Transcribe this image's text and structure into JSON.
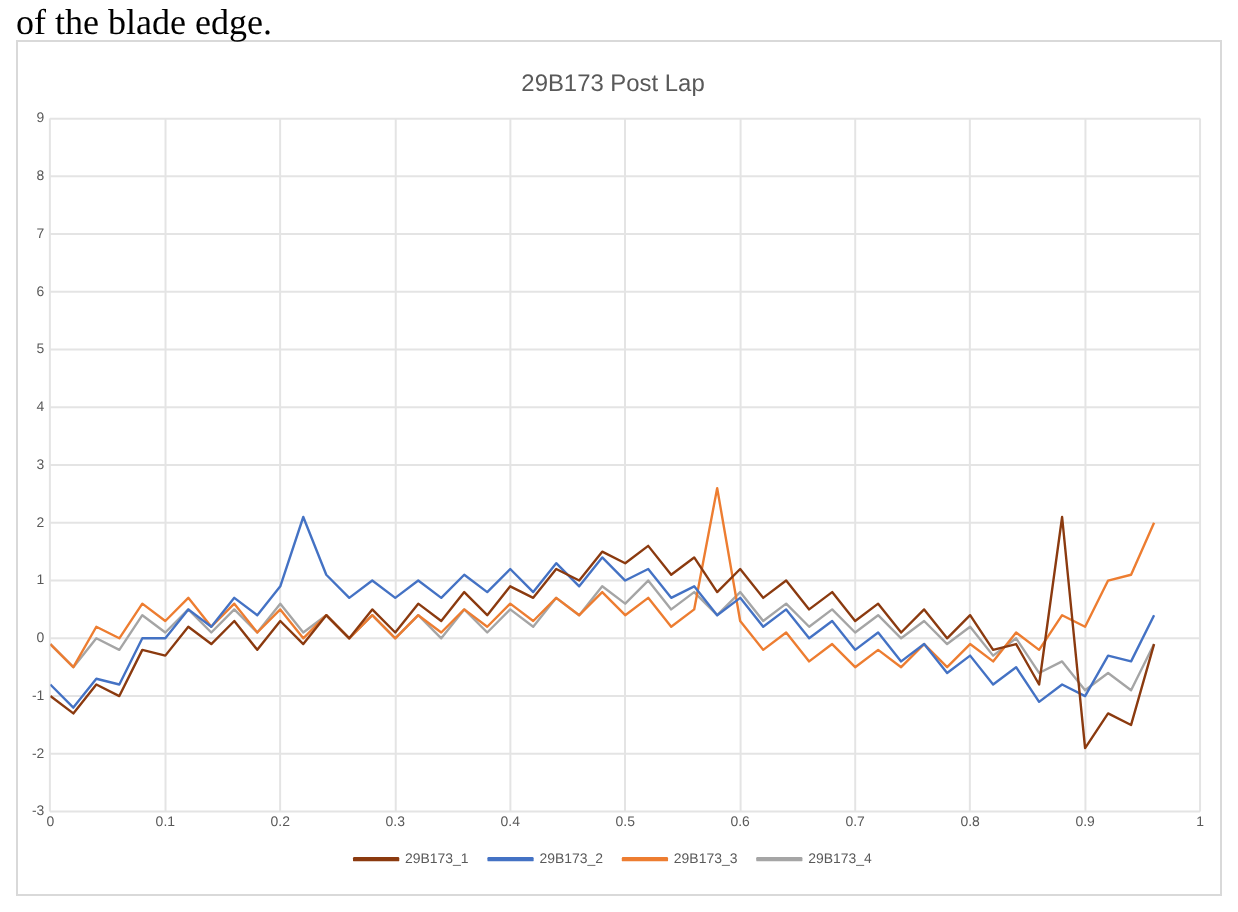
{
  "chart_data": {
    "type": "line",
    "title": "29B173 Post Lap",
    "annotations": [
      "of the blade edge."
    ],
    "x": [
      0,
      0.02,
      0.04,
      0.06,
      0.08,
      0.1,
      0.12,
      0.14,
      0.16,
      0.18,
      0.2,
      0.22,
      0.24,
      0.26,
      0.28,
      0.3,
      0.32,
      0.34,
      0.36,
      0.38,
      0.4,
      0.42,
      0.44,
      0.46,
      0.48,
      0.5,
      0.52,
      0.54,
      0.56,
      0.58,
      0.6,
      0.62,
      0.64,
      0.66,
      0.68,
      0.7,
      0.72,
      0.74,
      0.76,
      0.78,
      0.8,
      0.82,
      0.84,
      0.86,
      0.88,
      0.9,
      0.92,
      0.94,
      0.96
    ],
    "series": [
      {
        "name": "29B173_1",
        "color": "#8b3a0f",
        "values": [
          -1.0,
          -1.3,
          -0.8,
          -1.0,
          -0.2,
          -0.3,
          0.2,
          -0.1,
          0.3,
          -0.2,
          0.3,
          -0.1,
          0.4,
          0.0,
          0.5,
          0.1,
          0.6,
          0.3,
          0.8,
          0.4,
          0.9,
          0.7,
          1.2,
          1.0,
          1.5,
          1.3,
          1.6,
          1.1,
          1.4,
          0.8,
          1.2,
          0.7,
          1.0,
          0.5,
          0.8,
          0.3,
          0.6,
          0.1,
          0.5,
          0.0,
          0.4,
          -0.2,
          -0.1,
          -0.8,
          2.1,
          -1.9,
          -1.3,
          -1.5,
          -0.1
        ]
      },
      {
        "name": "29B173_2",
        "color": "#4472c4",
        "values": [
          -0.8,
          -1.2,
          -0.7,
          -0.8,
          0.0,
          0.0,
          0.5,
          0.2,
          0.7,
          0.4,
          0.9,
          2.1,
          1.1,
          0.7,
          1.0,
          0.7,
          1.0,
          0.7,
          1.1,
          0.8,
          1.2,
          0.8,
          1.3,
          0.9,
          1.4,
          1.0,
          1.2,
          0.7,
          0.9,
          0.4,
          0.7,
          0.2,
          0.5,
          0.0,
          0.3,
          -0.2,
          0.1,
          -0.4,
          -0.1,
          -0.6,
          -0.3,
          -0.8,
          -0.5,
          -1.1,
          -0.8,
          -1.0,
          -0.3,
          -0.4,
          0.4
        ]
      },
      {
        "name": "29B173_3",
        "color": "#ed7d31",
        "values": [
          -0.1,
          -0.5,
          0.2,
          0.0,
          0.6,
          0.3,
          0.7,
          0.2,
          0.6,
          0.1,
          0.5,
          0.0,
          0.4,
          0.0,
          0.4,
          0.0,
          0.4,
          0.1,
          0.5,
          0.2,
          0.6,
          0.3,
          0.7,
          0.4,
          0.8,
          0.4,
          0.7,
          0.2,
          0.5,
          2.6,
          0.3,
          -0.2,
          0.1,
          -0.4,
          -0.1,
          -0.5,
          -0.2,
          -0.5,
          -0.1,
          -0.5,
          -0.1,
          -0.4,
          0.1,
          -0.2,
          0.4,
          0.2,
          1.0,
          1.1,
          2.0
        ]
      },
      {
        "name": "29B173_4",
        "color": "#a5a5a5",
        "values": [
          -0.1,
          -0.5,
          0.0,
          -0.2,
          0.4,
          0.1,
          0.5,
          0.1,
          0.5,
          0.1,
          0.6,
          0.1,
          0.4,
          0.0,
          0.4,
          0.0,
          0.4,
          0.0,
          0.5,
          0.1,
          0.5,
          0.2,
          0.7,
          0.4,
          0.9,
          0.6,
          1.0,
          0.5,
          0.8,
          0.4,
          0.8,
          0.3,
          0.6,
          0.2,
          0.5,
          0.1,
          0.4,
          0.0,
          0.3,
          -0.1,
          0.2,
          -0.3,
          0.0,
          -0.6,
          -0.4,
          -0.9,
          -0.6,
          -0.9,
          -0.1
        ]
      }
    ],
    "xlim": [
      0,
      1
    ],
    "xticks": [
      0,
      0.1,
      0.2,
      0.3,
      0.4,
      0.5,
      0.6,
      0.7,
      0.8,
      0.9,
      1
    ],
    "ylim": [
      -3,
      9
    ],
    "yticks": [
      -3,
      -2,
      -1,
      0,
      1,
      2,
      3,
      4,
      5,
      6,
      7,
      8,
      9
    ],
    "grid": true,
    "legend": "bottom",
    "marker": "none",
    "line_style": "solid"
  }
}
